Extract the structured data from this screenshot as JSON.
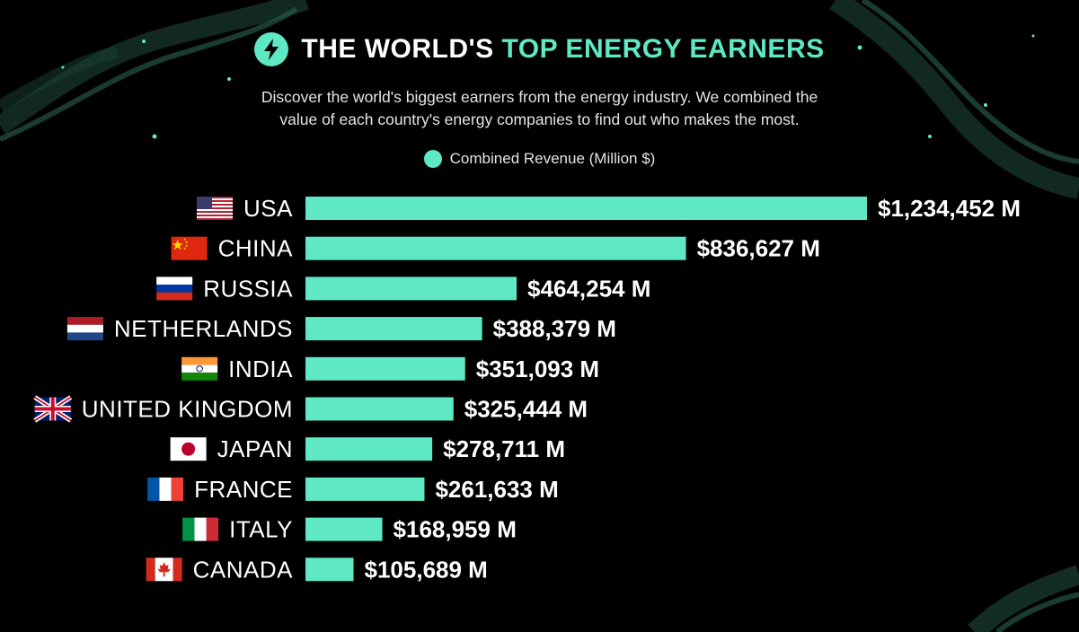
{
  "header": {
    "title_part1": "THE WORLD'S",
    "title_part2": "TOP ENERGY EARNERS",
    "subtitle_line1": "Discover the world's biggest earners from the energy industry. We combined the",
    "subtitle_line2": "value of each country's energy companies to find out who makes the most."
  },
  "legend": {
    "label": "Combined Revenue (Million $)"
  },
  "colors": {
    "background": "#000000",
    "accent": "#5ee9c4",
    "wave": "#1f4a3c"
  },
  "chart_data": {
    "type": "bar",
    "orientation": "horizontal",
    "categories": [
      "USA",
      "CHINA",
      "RUSSIA",
      "NETHERLANDS",
      "INDIA",
      "UNITED KINGDOM",
      "JAPAN",
      "FRANCE",
      "ITALY",
      "CANADA"
    ],
    "series": [
      {
        "name": "Combined Revenue (Million $)",
        "values": [
          1234452,
          836627,
          464254,
          388379,
          351093,
          325444,
          278711,
          261633,
          168959,
          105689
        ]
      }
    ],
    "value_labels": [
      "$1,234,452 M",
      "$836,627 M",
      "$464,254 M",
      "$388,379 M",
      "$351,093 M",
      "$325,444 M",
      "$278,711 M",
      "$261,633 M",
      "$168,959 M",
      "$105,689 M"
    ],
    "flags": [
      "usa-flag",
      "china-flag",
      "russia-flag",
      "netherlands-flag",
      "india-flag",
      "uk-flag",
      "japan-flag",
      "france-flag",
      "italy-flag",
      "canada-flag"
    ],
    "title": "THE WORLD'S TOP ENERGY EARNERS",
    "xlim": [
      0,
      1234452
    ],
    "grid": false,
    "legend_position": "top-center"
  }
}
